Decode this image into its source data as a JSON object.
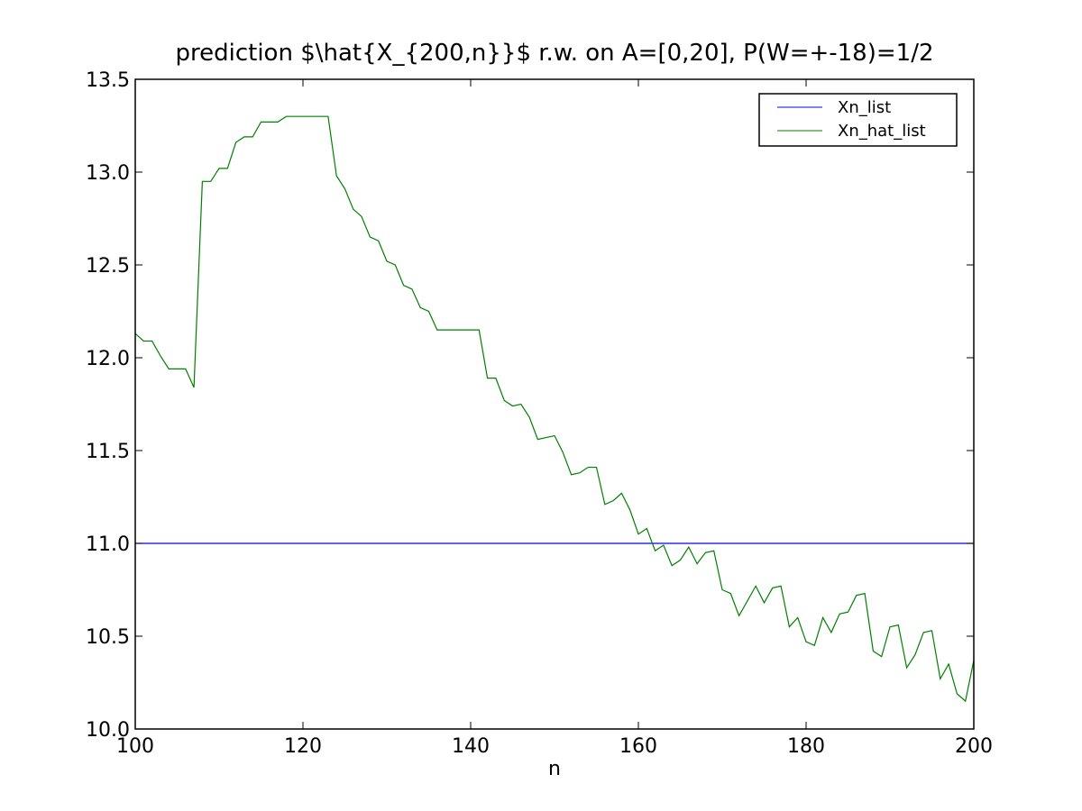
{
  "chart_data": {
    "type": "line",
    "title": "prediction $\\hat{X_{200,n}}$ r.w. on A=[0,20], P(W=+-18)=1/2",
    "xlabel": "n",
    "ylabel": "",
    "xlim": [
      100,
      200
    ],
    "ylim": [
      10.0,
      13.5
    ],
    "x_ticks": [
      "100",
      "120",
      "140",
      "160",
      "180",
      "200"
    ],
    "y_ticks": [
      "10.0",
      "10.5",
      "11.0",
      "11.5",
      "12.0",
      "12.5",
      "13.0",
      "13.5"
    ],
    "grid": false,
    "legend_position": "top-right",
    "series": [
      {
        "name": "Xn_list",
        "color": "#0000ff",
        "x": [
          100,
          200
        ],
        "values": [
          11.0,
          11.0
        ]
      },
      {
        "name": "Xn_hat_list",
        "color": "#008000",
        "x": [
          100,
          101,
          102,
          103,
          104,
          105,
          106,
          107,
          108,
          109,
          110,
          111,
          112,
          113,
          114,
          115,
          116,
          117,
          118,
          119,
          120,
          121,
          122,
          123,
          124,
          125,
          126,
          127,
          128,
          129,
          130,
          131,
          132,
          133,
          134,
          135,
          136,
          137,
          138,
          139,
          140,
          141,
          142,
          143,
          144,
          145,
          146,
          147,
          148,
          149,
          150,
          151,
          152,
          153,
          154,
          155,
          156,
          157,
          158,
          159,
          160,
          161,
          162,
          163,
          164,
          165,
          166,
          167,
          168,
          169,
          170,
          171,
          172,
          173,
          174,
          175,
          176,
          177,
          178,
          179,
          180,
          181,
          182,
          183,
          184,
          185,
          186,
          187,
          188,
          189,
          190,
          191,
          192,
          193,
          194,
          195,
          196,
          197,
          198,
          199,
          200
        ],
        "values": [
          12.13,
          12.09,
          12.09,
          12.01,
          11.94,
          11.94,
          11.94,
          11.84,
          12.95,
          12.95,
          13.02,
          13.02,
          13.16,
          13.19,
          13.19,
          13.27,
          13.27,
          13.27,
          13.3,
          13.3,
          13.3,
          13.3,
          13.3,
          13.3,
          12.98,
          12.91,
          12.8,
          12.76,
          12.65,
          12.63,
          12.52,
          12.5,
          12.39,
          12.37,
          12.27,
          12.25,
          12.15,
          12.15,
          12.15,
          12.15,
          12.15,
          12.15,
          11.89,
          11.89,
          11.77,
          11.74,
          11.75,
          11.68,
          11.56,
          11.57,
          11.58,
          11.49,
          11.37,
          11.38,
          11.41,
          11.41,
          11.21,
          11.23,
          11.27,
          11.18,
          11.05,
          11.08,
          10.96,
          10.99,
          10.88,
          10.91,
          10.98,
          10.89,
          10.95,
          10.96,
          10.75,
          10.73,
          10.61,
          10.69,
          10.77,
          10.68,
          10.76,
          10.77,
          10.55,
          10.6,
          10.47,
          10.45,
          10.6,
          10.52,
          10.62,
          10.63,
          10.72,
          10.73,
          10.42,
          10.39,
          10.55,
          10.56,
          10.33,
          10.4,
          10.52,
          10.53,
          10.27,
          10.35,
          10.19,
          10.15,
          10.37
        ]
      }
    ]
  }
}
